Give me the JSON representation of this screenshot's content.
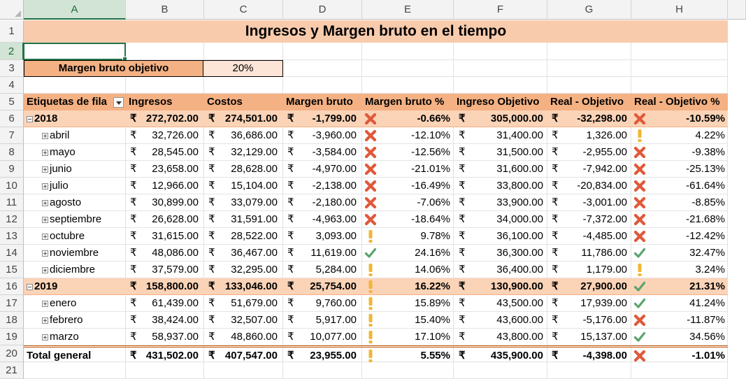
{
  "columns": [
    "A",
    "B",
    "C",
    "D",
    "E",
    "F",
    "G",
    "H"
  ],
  "selected_column": "A",
  "rows_numbers": [
    "1",
    "2",
    "3",
    "4",
    "5",
    "6",
    "7",
    "8",
    "9",
    "10",
    "11",
    "12",
    "13",
    "14",
    "15",
    "16",
    "17",
    "18",
    "19",
    "20",
    "21"
  ],
  "selected_row": "2",
  "title": "Ingresos y Margen bruto en el tiempo",
  "target": {
    "label": "Margen bruto objetivo",
    "value": "20%"
  },
  "headers": {
    "row_labels": "Etiquetas de fila",
    "ingresos": "Ingresos",
    "costos": "Costos",
    "margen": "Margen bruto",
    "margen_pct": "Margen bruto %",
    "ingreso_obj": "Ingreso Objetivo",
    "real_obj": "Real - Objetivo",
    "real_obj_pct": "Real - Objetivo %"
  },
  "currency_symbol": "₹",
  "status_colors": {
    "bad": "#e0593a",
    "warn": "#f2b632",
    "good": "#5aa46c"
  },
  "pivot_rows": [
    {
      "label": "2018",
      "type": "year",
      "ingresos": "272,702.00",
      "costos": "274,501.00",
      "margen": "-1,799.00",
      "icon1": "x",
      "margen_pct": "-0.66%",
      "obj": "305,000.00",
      "real": "-32,298.00",
      "icon2": "x",
      "real_pct": "-10.59%"
    },
    {
      "label": "abril",
      "type": "month",
      "ingresos": "32,726.00",
      "costos": "36,686.00",
      "margen": "-3,960.00",
      "icon1": "x",
      "margen_pct": "-12.10%",
      "obj": "31,400.00",
      "real": "1,326.00",
      "icon2": "e",
      "real_pct": "4.22%"
    },
    {
      "label": "mayo",
      "type": "month",
      "ingresos": "28,545.00",
      "costos": "32,129.00",
      "margen": "-3,584.00",
      "icon1": "x",
      "margen_pct": "-12.56%",
      "obj": "31,500.00",
      "real": "-2,955.00",
      "icon2": "x",
      "real_pct": "-9.38%"
    },
    {
      "label": "junio",
      "type": "month",
      "ingresos": "23,658.00",
      "costos": "28,628.00",
      "margen": "-4,970.00",
      "icon1": "x",
      "margen_pct": "-21.01%",
      "obj": "31,600.00",
      "real": "-7,942.00",
      "icon2": "x",
      "real_pct": "-25.13%"
    },
    {
      "label": "julio",
      "type": "month",
      "ingresos": "12,966.00",
      "costos": "15,104.00",
      "margen": "-2,138.00",
      "icon1": "x",
      "margen_pct": "-16.49%",
      "obj": "33,800.00",
      "real": "-20,834.00",
      "icon2": "x",
      "real_pct": "-61.64%"
    },
    {
      "label": "agosto",
      "type": "month",
      "ingresos": "30,899.00",
      "costos": "33,079.00",
      "margen": "-2,180.00",
      "icon1": "x",
      "margen_pct": "-7.06%",
      "obj": "33,900.00",
      "real": "-3,001.00",
      "icon2": "x",
      "real_pct": "-8.85%"
    },
    {
      "label": "septiembre",
      "type": "month",
      "ingresos": "26,628.00",
      "costos": "31,591.00",
      "margen": "-4,963.00",
      "icon1": "x",
      "margen_pct": "-18.64%",
      "obj": "34,000.00",
      "real": "-7,372.00",
      "icon2": "x",
      "real_pct": "-21.68%"
    },
    {
      "label": "octubre",
      "type": "month",
      "ingresos": "31,615.00",
      "costos": "28,522.00",
      "margen": "3,093.00",
      "icon1": "e",
      "margen_pct": "9.78%",
      "obj": "36,100.00",
      "real": "-4,485.00",
      "icon2": "x",
      "real_pct": "-12.42%"
    },
    {
      "label": "noviembre",
      "type": "month",
      "ingresos": "48,086.00",
      "costos": "36,467.00",
      "margen": "11,619.00",
      "icon1": "c",
      "margen_pct": "24.16%",
      "obj": "36,300.00",
      "real": "11,786.00",
      "icon2": "c",
      "real_pct": "32.47%"
    },
    {
      "label": "diciembre",
      "type": "month",
      "ingresos": "37,579.00",
      "costos": "32,295.00",
      "margen": "5,284.00",
      "icon1": "e",
      "margen_pct": "14.06%",
      "obj": "36,400.00",
      "real": "1,179.00",
      "icon2": "e",
      "real_pct": "3.24%"
    },
    {
      "label": "2019",
      "type": "year",
      "ingresos": "158,800.00",
      "costos": "133,046.00",
      "margen": "25,754.00",
      "icon1": "e",
      "margen_pct": "16.22%",
      "obj": "130,900.00",
      "real": "27,900.00",
      "icon2": "c",
      "real_pct": "21.31%"
    },
    {
      "label": "enero",
      "type": "month",
      "ingresos": "61,439.00",
      "costos": "51,679.00",
      "margen": "9,760.00",
      "icon1": "e",
      "margen_pct": "15.89%",
      "obj": "43,500.00",
      "real": "17,939.00",
      "icon2": "c",
      "real_pct": "41.24%"
    },
    {
      "label": "febrero",
      "type": "month",
      "ingresos": "38,424.00",
      "costos": "32,507.00",
      "margen": "5,917.00",
      "icon1": "e",
      "margen_pct": "15.40%",
      "obj": "43,600.00",
      "real": "-5,176.00",
      "icon2": "x",
      "real_pct": "-11.87%"
    },
    {
      "label": "marzo",
      "type": "month",
      "ingresos": "58,937.00",
      "costos": "48,860.00",
      "margen": "10,077.00",
      "icon1": "e",
      "margen_pct": "17.10%",
      "obj": "43,800.00",
      "real": "15,137.00",
      "icon2": "c",
      "real_pct": "34.56%"
    },
    {
      "label": "Total general",
      "type": "total",
      "ingresos": "431,502.00",
      "costos": "407,547.00",
      "margen": "23,955.00",
      "icon1": "e",
      "margen_pct": "5.55%",
      "obj": "435,900.00",
      "real": "-4,398.00",
      "icon2": "x",
      "real_pct": "-1.01%"
    }
  ]
}
